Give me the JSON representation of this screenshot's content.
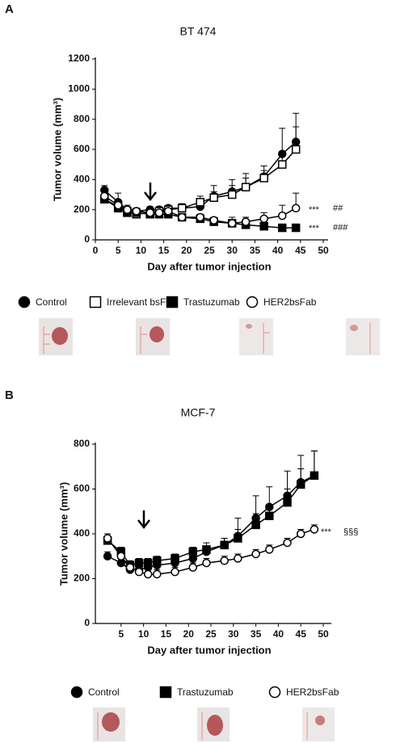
{
  "chart_data": [
    {
      "type": "line",
      "panel": "A",
      "title": "BT 474",
      "x_label": "Day after tumor injection",
      "y_label": "Tumor volume (mm³)",
      "x": [
        2,
        5,
        7,
        9,
        12,
        14,
        16,
        19,
        23,
        26,
        30,
        33,
        37,
        41,
        44
      ],
      "series": [
        {
          "name": "Control",
          "color": "#000000",
          "marker": "circle",
          "filled": true,
          "values": [
            330,
            250,
            200,
            190,
            200,
            200,
            210,
            210,
            220,
            290,
            320,
            350,
            420,
            570,
            650
          ],
          "errors": [
            30,
            60,
            30,
            20,
            20,
            20,
            20,
            30,
            40,
            70,
            80,
            90,
            70,
            170,
            190
          ]
        },
        {
          "name": "Irrelevant  bsFab",
          "color": "#000000",
          "marker": "square",
          "filled": false,
          "values": [
            270,
            220,
            190,
            170,
            180,
            190,
            200,
            210,
            250,
            280,
            300,
            350,
            410,
            500,
            600
          ],
          "errors": [
            30,
            30,
            20,
            20,
            20,
            20,
            20,
            30,
            40,
            40,
            60,
            60,
            50,
            70,
            150
          ]
        },
        {
          "name": "Trastuzumab",
          "color": "#000000",
          "marker": "square",
          "filled": true,
          "values": [
            270,
            210,
            180,
            180,
            170,
            170,
            170,
            150,
            140,
            120,
            110,
            100,
            90,
            80,
            80
          ],
          "errors": [
            20,
            20,
            20,
            20,
            20,
            20,
            20,
            20,
            20,
            20,
            20,
            20,
            10,
            10,
            10
          ]
        },
        {
          "name": "HER2bsFab",
          "color": "#000000",
          "marker": "circle",
          "filled": false,
          "values": [
            290,
            230,
            200,
            190,
            180,
            180,
            190,
            150,
            150,
            130,
            110,
            120,
            140,
            160,
            210
          ],
          "errors": [
            30,
            30,
            20,
            20,
            20,
            20,
            20,
            20,
            20,
            20,
            40,
            30,
            40,
            70,
            100
          ]
        }
      ],
      "annotations": [
        "***",
        "##",
        "***",
        "###"
      ],
      "xlim": [
        0,
        50
      ],
      "xticks": [
        0,
        5,
        10,
        15,
        20,
        25,
        30,
        35,
        40,
        45,
        50
      ],
      "ylim": [
        0,
        1200
      ],
      "yticks": [
        0,
        200,
        400,
        600,
        800,
        1000,
        1200
      ],
      "grid": false
    },
    {
      "type": "line",
      "panel": "B",
      "title": "MCF-7",
      "x_label": "Day after tumor injection",
      "y_label": "Tumor volume (mm³)",
      "x": [
        2,
        5,
        7,
        9,
        11,
        13,
        17,
        21,
        24,
        28,
        31,
        35,
        38,
        42,
        45,
        48
      ],
      "series": [
        {
          "name": "Control",
          "color": "#000000",
          "marker": "circle",
          "filled": true,
          "values": [
            300,
            270,
            240,
            240,
            250,
            260,
            270,
            290,
            320,
            350,
            390,
            470,
            520,
            570,
            630,
            660
          ],
          "errors": [
            20,
            20,
            20,
            20,
            20,
            20,
            20,
            20,
            20,
            30,
            80,
            100,
            90,
            110,
            120,
            110
          ]
        },
        {
          "name": "Trastuzumab",
          "color": "#000000",
          "marker": "square",
          "filled": true,
          "values": [
            370,
            320,
            260,
            270,
            270,
            280,
            290,
            320,
            330,
            350,
            380,
            440,
            480,
            540,
            620,
            660
          ],
          "errors": [
            30,
            20,
            20,
            20,
            20,
            20,
            20,
            20,
            30,
            30,
            40,
            50,
            50,
            60,
            70,
            110
          ]
        },
        {
          "name": "HER2bsFab",
          "color": "#000000",
          "marker": "circle",
          "filled": false,
          "values": [
            380,
            300,
            250,
            230,
            220,
            220,
            230,
            250,
            270,
            280,
            290,
            310,
            330,
            360,
            400,
            420
          ],
          "errors": [
            20,
            20,
            20,
            20,
            20,
            20,
            20,
            20,
            20,
            20,
            20,
            20,
            20,
            20,
            20,
            20
          ]
        }
      ],
      "annotations": [
        "***",
        "§§§"
      ],
      "xlim": [
        0,
        50
      ],
      "xticks": [
        5,
        10,
        15,
        20,
        25,
        30,
        35,
        40,
        45,
        50
      ],
      "ylim": [
        0,
        800
      ],
      "yticks": [
        0,
        200,
        400,
        600,
        800
      ],
      "grid": false
    }
  ]
}
